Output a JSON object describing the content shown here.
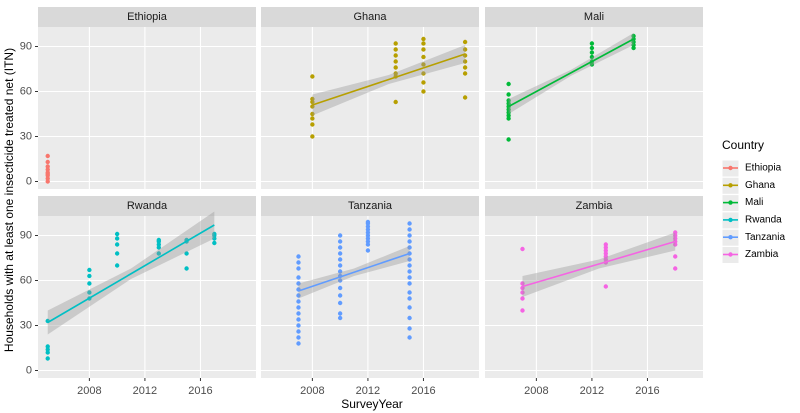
{
  "x_label": "SurveyYear",
  "y_label": "Households with at least one insecticide treated net (ITN)",
  "legend_title": "Country",
  "chart_data": [
    {
      "type": "scatter",
      "title": "Ethiopia",
      "series": [
        {
          "name": "Ethiopia",
          "color": "#F8766D",
          "x": [
            2005,
            2005,
            2005,
            2005,
            2005,
            2005,
            2005,
            2005,
            2005
          ],
          "values": [
            0,
            2,
            4,
            5,
            6,
            8,
            10,
            13,
            17
          ]
        }
      ],
      "xlim": [
        2004.3,
        2020
      ],
      "ylim": [
        -5,
        103
      ],
      "xticks": [
        2008,
        2012,
        2016
      ],
      "yticks": [
        0,
        30,
        60,
        90
      ],
      "grid": true
    },
    {
      "type": "scatter",
      "title": "Ghana",
      "series": [
        {
          "name": "Ghana",
          "color": "#B79F00",
          "x": [
            2008,
            2008,
            2008,
            2008,
            2008,
            2008,
            2008,
            2008,
            2014,
            2014,
            2014,
            2014,
            2014,
            2014,
            2014,
            2014,
            2016,
            2016,
            2016,
            2016,
            2016,
            2016,
            2016,
            2016,
            2019,
            2019,
            2019,
            2019,
            2019,
            2019,
            2019
          ],
          "values": [
            30,
            38,
            42,
            45,
            50,
            53,
            55,
            70,
            53,
            70,
            72,
            76,
            80,
            84,
            88,
            92,
            60,
            66,
            72,
            78,
            83,
            88,
            92,
            95,
            56,
            72,
            76,
            80,
            84,
            88,
            93
          ]
        }
      ],
      "fit": {
        "x": [
          2008,
          2013.5,
          2019
        ],
        "values": [
          51,
          68,
          85
        ],
        "lower": [
          44,
          65,
          79
        ],
        "upper": [
          58,
          71,
          91
        ]
      },
      "xlim": [
        2004.3,
        2020
      ],
      "ylim": [
        -5,
        103
      ],
      "xticks": [
        2008,
        2012,
        2016
      ],
      "yticks": [
        0,
        30,
        60,
        90
      ],
      "grid": true
    },
    {
      "type": "scatter",
      "title": "Mali",
      "series": [
        {
          "name": "Mali",
          "color": "#00BA38",
          "x": [
            2006,
            2006,
            2006,
            2006,
            2006,
            2006,
            2006,
            2006,
            2006,
            2006,
            2012,
            2012,
            2012,
            2012,
            2012,
            2012,
            2015,
            2015,
            2015,
            2015,
            2015
          ],
          "values": [
            28,
            42,
            44,
            46,
            48,
            50,
            52,
            54,
            58,
            65,
            78,
            80,
            83,
            86,
            89,
            92,
            89,
            91,
            93,
            95,
            97
          ]
        }
      ],
      "fit": {
        "x": [
          2006,
          2010.5,
          2015
        ],
        "values": [
          50,
          72.5,
          95
        ],
        "lower": [
          45,
          70.5,
          91
        ],
        "upper": [
          55,
          74.5,
          99
        ]
      },
      "xlim": [
        2004.3,
        2020
      ],
      "ylim": [
        -5,
        103
      ],
      "xticks": [
        2008,
        2012,
        2016
      ],
      "yticks": [
        0,
        30,
        60,
        90
      ],
      "grid": true
    },
    {
      "type": "scatter",
      "title": "Rwanda",
      "series": [
        {
          "name": "Rwanda",
          "color": "#00BFC4",
          "x": [
            2005,
            2005,
            2005,
            2005,
            2005,
            2008,
            2008,
            2008,
            2008,
            2008,
            2010,
            2010,
            2010,
            2010,
            2010,
            2013,
            2013,
            2013,
            2013,
            2013,
            2015,
            2015,
            2015,
            2015,
            2017,
            2017,
            2017,
            2017
          ],
          "values": [
            8,
            12,
            14,
            16,
            33,
            48,
            52,
            58,
            63,
            67,
            70,
            78,
            84,
            88,
            91,
            78,
            82,
            84,
            86,
            87,
            68,
            78,
            86,
            87,
            85,
            88,
            90,
            91
          ]
        }
      ],
      "fit": {
        "x": [
          2005,
          2011,
          2017
        ],
        "values": [
          32,
          64.5,
          97
        ],
        "lower": [
          24,
          61,
          88
        ],
        "upper": [
          40,
          68,
          106
        ]
      },
      "xlim": [
        2004.3,
        2020
      ],
      "ylim": [
        -5,
        103
      ],
      "xticks": [
        2008,
        2012,
        2016
      ],
      "yticks": [
        0,
        30,
        60,
        90
      ],
      "grid": true
    },
    {
      "type": "scatter",
      "title": "Tanzania",
      "series": [
        {
          "name": "Tanzania",
          "color": "#619CFF",
          "x": [
            2007,
            2007,
            2007,
            2007,
            2007,
            2007,
            2007,
            2007,
            2007,
            2007,
            2007,
            2007,
            2007,
            2007,
            2007,
            2010,
            2010,
            2010,
            2010,
            2010,
            2010,
            2010,
            2010,
            2010,
            2010,
            2010,
            2010,
            2010,
            2010,
            2012,
            2012,
            2012,
            2012,
            2012,
            2012,
            2012,
            2012,
            2012,
            2012,
            2015,
            2015,
            2015,
            2015,
            2015,
            2015,
            2015,
            2015,
            2015,
            2015,
            2015,
            2015,
            2015,
            2015,
            2015,
            2015,
            2015
          ],
          "values": [
            18,
            22,
            26,
            30,
            34,
            38,
            42,
            46,
            50,
            54,
            58,
            62,
            68,
            72,
            76,
            35,
            38,
            45,
            50,
            55,
            60,
            63,
            66,
            70,
            74,
            78,
            82,
            86,
            90,
            80,
            84,
            86,
            88,
            90,
            92,
            94,
            96,
            98,
            99,
            22,
            28,
            35,
            42,
            48,
            52,
            58,
            62,
            66,
            70,
            74,
            78,
            82,
            86,
            90,
            94,
            98
          ]
        }
      ],
      "fit": {
        "x": [
          2007,
          2011,
          2015
        ],
        "values": [
          53,
          65.5,
          78
        ],
        "lower": [
          48,
          63,
          73
        ],
        "upper": [
          58,
          68,
          83
        ]
      },
      "xlim": [
        2004.3,
        2020
      ],
      "ylim": [
        -5,
        103
      ],
      "xticks": [
        2008,
        2012,
        2016
      ],
      "yticks": [
        0,
        30,
        60,
        90
      ],
      "grid": true
    },
    {
      "type": "scatter",
      "title": "Zambia",
      "series": [
        {
          "name": "Zambia",
          "color": "#F564E3",
          "x": [
            2007,
            2007,
            2007,
            2007,
            2007,
            2007,
            2013,
            2013,
            2013,
            2013,
            2013,
            2013,
            2013,
            2013,
            2018,
            2018,
            2018,
            2018,
            2018,
            2018,
            2018
          ],
          "values": [
            40,
            48,
            52,
            55,
            58,
            81,
            56,
            72,
            74,
            76,
            78,
            80,
            82,
            84,
            68,
            76,
            84,
            86,
            88,
            90,
            92
          ]
        }
      ],
      "fit": {
        "x": [
          2007,
          2012.5,
          2018
        ],
        "values": [
          56,
          71,
          86
        ],
        "lower": [
          49,
          68,
          80
        ],
        "upper": [
          63,
          74,
          92
        ]
      },
      "xlim": [
        2004.3,
        2020
      ],
      "ylim": [
        -5,
        103
      ],
      "xticks": [
        2008,
        2012,
        2016
      ],
      "yticks": [
        0,
        30,
        60,
        90
      ],
      "grid": true
    }
  ]
}
